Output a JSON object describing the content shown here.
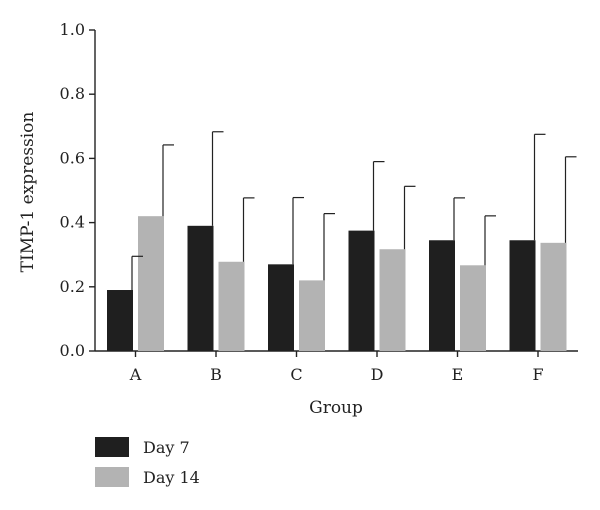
{
  "chart_data": {
    "type": "bar",
    "categories": [
      "A",
      "B",
      "C",
      "D",
      "E",
      "F"
    ],
    "series": [
      {
        "name": "Day 7",
        "color": "#1f1f1f",
        "values": [
          0.19,
          0.39,
          0.27,
          0.375,
          0.345,
          0.345
        ],
        "error_upper": [
          0.295,
          0.683,
          0.478,
          0.59,
          0.477,
          0.675
        ]
      },
      {
        "name": "Day 14",
        "color": "#b3b3b3",
        "values": [
          0.42,
          0.278,
          0.22,
          0.317,
          0.267,
          0.337
        ],
        "error_upper": [
          0.642,
          0.477,
          0.428,
          0.513,
          0.421,
          0.605
        ]
      }
    ],
    "title": "",
    "xlabel": "Group",
    "ylabel": "TIMP-1 expression",
    "ylim": [
      0.0,
      1.0
    ],
    "yticks": [
      "0.0",
      "0.2",
      "0.4",
      "0.6",
      "0.8",
      "1.0"
    ],
    "ytick_values": [
      0.0,
      0.2,
      0.4,
      0.6,
      0.8,
      1.0
    ],
    "grid": false,
    "legend_position": "bottom-left"
  }
}
